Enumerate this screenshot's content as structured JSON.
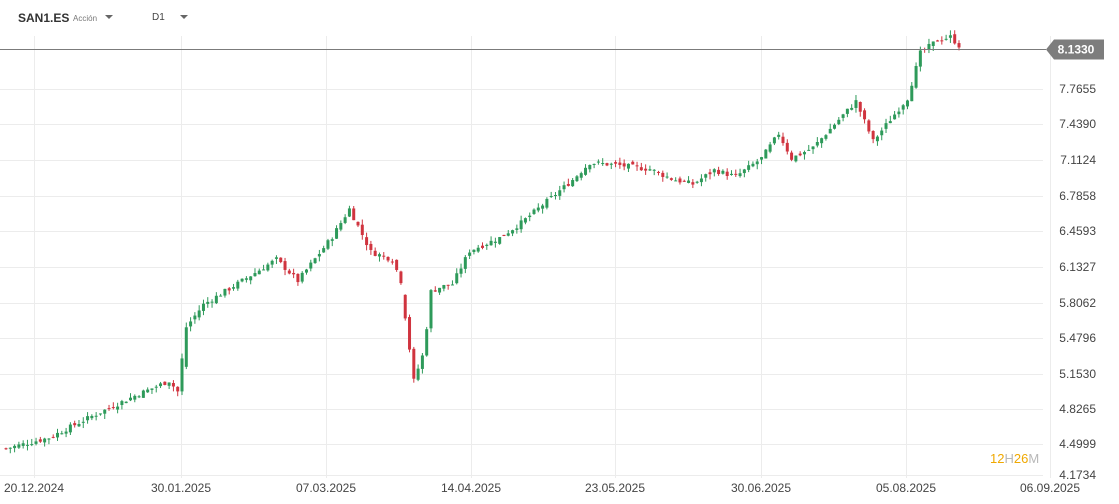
{
  "header": {
    "symbol": "SAN1.ES",
    "instrument_type": "Acción",
    "timeframe": "D1"
  },
  "colors": {
    "up": "#2e9a5a",
    "down": "#d0343f",
    "grid": "#ececec",
    "price_line": "#7b7b7b",
    "price_tag": "#7d7d7d",
    "timer_accent": "#f0a800",
    "timer_muted": "#b8b8b8"
  },
  "timer": {
    "hours": "12",
    "h": "H",
    "minutes": "26",
    "m": "M"
  },
  "chart_data": {
    "type": "candlestick",
    "current_price": 8.133,
    "current_price_label": "8.1330",
    "y_ticks": [
      "7.7655",
      "7.4390",
      "7.1124",
      "6.7858",
      "6.4593",
      "6.1327",
      "5.8062",
      "5.4796",
      "5.1530",
      "4.8265",
      "4.4999",
      "4.1734"
    ],
    "y_range": [
      4.1734,
      8.133
    ],
    "x_ticks": [
      "20.12.2024",
      "30.01.2025",
      "07.03.2025",
      "14.04.2025",
      "23.05.2025",
      "30.06.2025",
      "05.08.2025",
      "06.09.2025"
    ],
    "grid": true,
    "control_points_close": [
      [
        0,
        4.42
      ],
      [
        10,
        4.52
      ],
      [
        20,
        4.72
      ],
      [
        30,
        4.91
      ],
      [
        38,
        5.05
      ],
      [
        40,
        4.95
      ],
      [
        42,
        5.55
      ],
      [
        46,
        5.76
      ],
      [
        55,
        5.98
      ],
      [
        63,
        6.18
      ],
      [
        68,
        5.98
      ],
      [
        76,
        6.39
      ],
      [
        80,
        6.65
      ],
      [
        85,
        6.25
      ],
      [
        90,
        6.18
      ],
      [
        92,
        5.98
      ],
      [
        93,
        5.65
      ],
      [
        95,
        5.05
      ],
      [
        97,
        5.28
      ],
      [
        98,
        5.55
      ],
      [
        99,
        5.88
      ],
      [
        101,
        5.92
      ],
      [
        104,
        5.95
      ],
      [
        108,
        6.26
      ],
      [
        115,
        6.38
      ],
      [
        120,
        6.52
      ],
      [
        126,
        6.72
      ],
      [
        132,
        6.92
      ],
      [
        136,
        7.08
      ],
      [
        142,
        7.06
      ],
      [
        150,
        7.02
      ],
      [
        155,
        6.93
      ],
      [
        160,
        6.88
      ],
      [
        165,
        7.01
      ],
      [
        170,
        6.95
      ],
      [
        176,
        7.12
      ],
      [
        180,
        7.35
      ],
      [
        183,
        7.12
      ],
      [
        188,
        7.22
      ],
      [
        194,
        7.48
      ],
      [
        198,
        7.65
      ],
      [
        202,
        7.28
      ],
      [
        206,
        7.48
      ],
      [
        210,
        7.68
      ],
      [
        213,
        8.1
      ],
      [
        217,
        8.22
      ],
      [
        220,
        8.25
      ],
      [
        222,
        8.17
      ]
    ]
  }
}
